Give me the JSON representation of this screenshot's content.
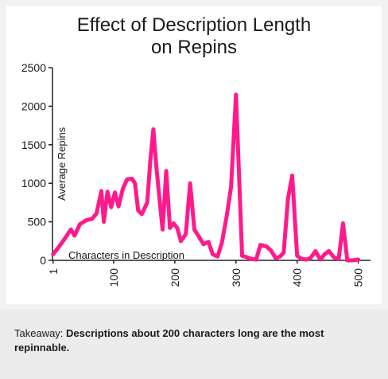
{
  "chart_data": {
    "type": "line",
    "title_lines": [
      "Effect of Description Length",
      "on Repins"
    ],
    "xlabel": "Characters in Description",
    "ylabel": "Average Repins",
    "xlim": [
      0,
      520
    ],
    "ylim": [
      0,
      2500
    ],
    "x_ticks": [
      "1",
      "100",
      "200",
      "300",
      "400",
      "500"
    ],
    "x_tick_values": [
      1,
      100,
      200,
      300,
      400,
      500
    ],
    "y_ticks": [
      "0",
      "500",
      "1000",
      "1500",
      "2000",
      "2500"
    ],
    "y_tick_values": [
      0,
      500,
      1000,
      1500,
      2000,
      2500
    ],
    "series_color": "#ff1a8c",
    "grid": false,
    "series": [
      {
        "x": [
          1,
          10,
          20,
          30,
          36,
          45,
          55,
          65,
          72,
          80,
          84,
          90,
          96,
          102,
          108,
          115,
          122,
          130,
          135,
          140,
          146,
          155,
          160,
          165,
          170,
          175,
          180,
          186,
          192,
          198,
          204,
          210,
          218,
          225,
          232,
          240,
          247,
          255,
          262,
          270,
          277,
          285,
          292,
          300,
          310,
          318,
          325,
          333,
          340,
          350,
          357,
          365,
          372,
          378,
          385,
          392,
          400,
          407,
          415,
          422,
          430,
          438,
          445,
          452,
          460,
          468,
          475,
          482,
          490,
          500
        ],
        "y": [
          80,
          170,
          280,
          400,
          320,
          470,
          520,
          540,
          610,
          900,
          500,
          890,
          690,
          880,
          700,
          930,
          1050,
          1060,
          1000,
          650,
          600,
          750,
          1300,
          1700,
          1200,
          800,
          400,
          1160,
          420,
          480,
          420,
          250,
          340,
          1000,
          400,
          300,
          210,
          240,
          80,
          50,
          230,
          580,
          950,
          2150,
          60,
          40,
          20,
          10,
          200,
          180,
          130,
          30,
          50,
          100,
          800,
          1100,
          60,
          20,
          10,
          30,
          120,
          10,
          80,
          120,
          40,
          20,
          480,
          0,
          0,
          10
        ]
      }
    ]
  },
  "takeaway": {
    "label": "Takeaway: ",
    "text": "Descriptions about 200 characters long are the most repinnable."
  }
}
